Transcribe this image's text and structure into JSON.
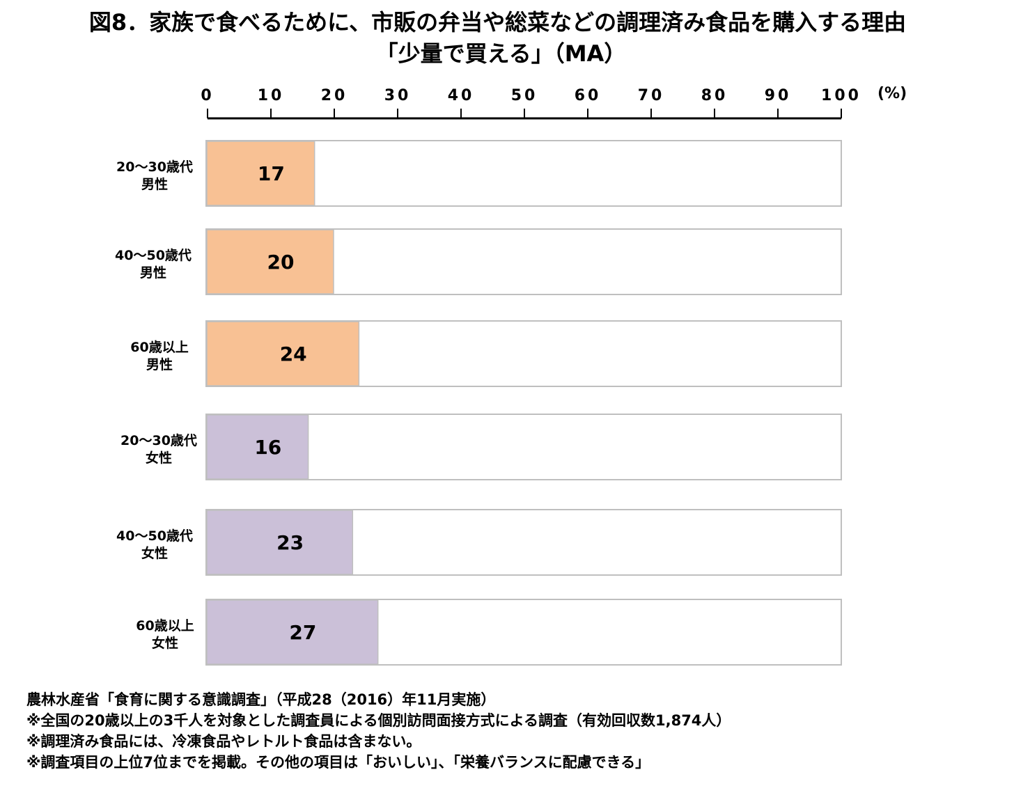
{
  "title": {
    "line1": "図8．家族で食べるために、市販の弁当や総菜などの調理済み食品を購入する理由",
    "line2": "「少量で買える」（MA）"
  },
  "chart_data": {
    "type": "bar",
    "orientation": "horizontal",
    "categories": [
      [
        "20～30歳代",
        "男性"
      ],
      [
        "40～50歳代",
        "男性"
      ],
      [
        "60歳以上",
        "男性"
      ],
      [
        "20～30歳代",
        "女性"
      ],
      [
        "40～50歳代",
        "女性"
      ],
      [
        "60歳以上",
        "女性"
      ]
    ],
    "values": [
      17,
      20,
      24,
      16,
      23,
      27
    ],
    "bar_colors": [
      "#f8c194",
      "#f8c194",
      "#f8c194",
      "#cbc0d8",
      "#cbc0d8",
      "#cbc0d8"
    ],
    "xlim": [
      0,
      100
    ],
    "xticks": [
      "0",
      "10",
      "20",
      "30",
      "40",
      "50",
      "60",
      "70",
      "80",
      "90",
      "100"
    ],
    "unit": "(%)",
    "axis_position": "top",
    "grid": false,
    "data_labels": true
  },
  "notes": [
    "農林水産省「食育に関する意識調査」（平成28（2016）年11月実施）",
    "※全国の20歳以上の3千人を対象とした調査員による個別訪問面接方式による調査（有効回収数1,874人）",
    "※調理済み食品には、冷凍食品やレトルト食品は含まない。",
    "※調査項目の上位7位までを掲載。その他の項目は「おいしい」、「栄養バランスに配慮できる」"
  ]
}
